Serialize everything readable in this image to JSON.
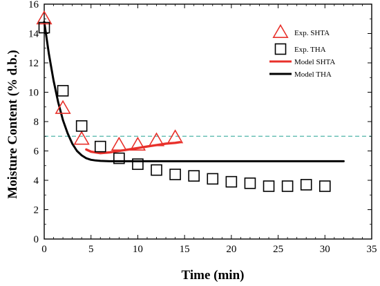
{
  "chart_data": {
    "type": "scatter",
    "xlabel": "Time (min)",
    "ylabel": "Moisture Content (% d.b.)",
    "xlim": [
      0,
      35
    ],
    "ylim": [
      0,
      16
    ],
    "xticks": [
      0,
      5,
      10,
      15,
      20,
      25,
      30,
      35
    ],
    "yticks": [
      0,
      2,
      4,
      6,
      8,
      10,
      12,
      14,
      16
    ],
    "grid": false,
    "legend_position": "top-right",
    "reference_line": {
      "y": 7.0,
      "color": "#4fb5a8",
      "style": "dashed"
    },
    "series": [
      {
        "name": "Exp. SHTA",
        "kind": "marker",
        "marker": "triangle",
        "color": "#e8302a",
        "x": [
          0,
          2,
          4,
          8,
          10,
          12,
          14
        ],
        "y": [
          15.0,
          8.9,
          6.8,
          6.4,
          6.4,
          6.7,
          6.9
        ]
      },
      {
        "name": "Exp. THA",
        "kind": "marker",
        "marker": "square",
        "color": "#000000",
        "x": [
          0,
          2,
          4,
          6,
          8,
          10,
          12,
          14,
          16,
          18,
          20,
          22,
          24,
          26,
          28,
          30
        ],
        "y": [
          14.4,
          10.1,
          7.7,
          6.3,
          5.5,
          5.1,
          4.7,
          4.4,
          4.3,
          4.1,
          3.9,
          3.8,
          3.6,
          3.6,
          3.7,
          3.6
        ]
      },
      {
        "name": "Model SHTA",
        "kind": "line",
        "color": "#e8302a",
        "x": [
          4.5,
          5,
          6,
          7,
          8,
          9,
          10,
          11,
          12,
          13,
          14,
          14.5
        ],
        "y": [
          6.1,
          5.95,
          5.85,
          5.9,
          6.0,
          6.1,
          6.2,
          6.3,
          6.4,
          6.5,
          6.55,
          6.6
        ]
      },
      {
        "name": "Model THA",
        "kind": "line",
        "color": "#000000",
        "x": [
          0,
          0.5,
          1,
          1.5,
          2,
          2.5,
          3,
          3.5,
          4,
          4.5,
          5,
          5.5,
          6,
          7,
          8,
          10,
          15,
          20,
          25,
          30,
          32
        ],
        "y": [
          14.8,
          12.6,
          10.8,
          9.3,
          8.1,
          7.2,
          6.5,
          6.0,
          5.7,
          5.5,
          5.4,
          5.35,
          5.32,
          5.3,
          5.3,
          5.3,
          5.3,
          5.3,
          5.3,
          5.3,
          5.3
        ]
      }
    ]
  }
}
